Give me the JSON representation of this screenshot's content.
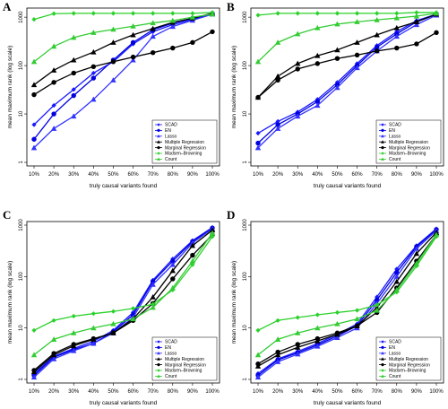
{
  "chart_data": [
    {
      "panel": "A",
      "type": "line",
      "ylog": true,
      "ylim": [
        1,
        1300
      ],
      "yticks": [
        "1",
        "10",
        "100",
        "1000"
      ],
      "xlabel": "truly causal variants found",
      "ylabel": "mean maximum rank (log scale)",
      "categories": [
        "10%",
        "20%",
        "30%",
        "40%",
        "50%",
        "60%",
        "70%",
        "80%",
        "90%",
        "100%"
      ],
      "legend_position": "bottom-right",
      "series": [
        {
          "name": "SCAD",
          "color": "#1a1aff",
          "marker": "diamond",
          "values": [
            6,
            15,
            32,
            70,
            120,
            280,
            500,
            700,
            900,
            1200
          ]
        },
        {
          "name": "EN",
          "color": "#0000e0",
          "marker": "circle",
          "values": [
            3,
            10,
            24,
            55,
            130,
            300,
            550,
            750,
            950,
            1200
          ]
        },
        {
          "name": "Lasso",
          "color": "#3333ff",
          "marker": "triangle",
          "values": [
            2,
            5,
            9,
            20,
            50,
            130,
            400,
            640,
            860,
            1150
          ]
        },
        {
          "name": "Multiple Regression",
          "color": "#000000",
          "marker": "triangle",
          "values": [
            40,
            80,
            130,
            190,
            300,
            430,
            580,
            780,
            950,
            1200
          ]
        },
        {
          "name": "Marginal Regression",
          "color": "#000000",
          "marker": "circle",
          "values": [
            25,
            45,
            70,
            95,
            120,
            150,
            185,
            230,
            300,
            500
          ]
        },
        {
          "name": "Madsen–Browning",
          "color": "#2bd12b",
          "marker": "diamond",
          "values": [
            900,
            1180,
            1200,
            1200,
            1200,
            1200,
            1200,
            1200,
            1200,
            1250
          ]
        },
        {
          "name": "Count",
          "color": "#33cc33",
          "marker": "triangle",
          "values": [
            120,
            250,
            380,
            480,
            560,
            650,
            760,
            850,
            1000,
            1150
          ]
        }
      ]
    },
    {
      "panel": "B",
      "type": "line",
      "ylog": true,
      "ylim": [
        1,
        1300
      ],
      "yticks": [
        "1",
        "10",
        "100",
        "1000"
      ],
      "xlabel": "truly causal variants found",
      "ylabel": "mean maximum rank (log scale)",
      "categories": [
        "10%",
        "20%",
        "30%",
        "40%",
        "50%",
        "60%",
        "70%",
        "80%",
        "90%",
        "100%"
      ],
      "legend_position": "bottom-right",
      "series": [
        {
          "name": "SCAD",
          "color": "#1a1aff",
          "marker": "diamond",
          "values": [
            4,
            7,
            11,
            20,
            45,
            110,
            260,
            500,
            850,
            1150
          ]
        },
        {
          "name": "EN",
          "color": "#0000e0",
          "marker": "circle",
          "values": [
            2.5,
            6,
            10,
            18,
            40,
            100,
            240,
            450,
            800,
            1150
          ]
        },
        {
          "name": "Lasso",
          "color": "#3333ff",
          "marker": "triangle",
          "values": [
            2,
            5,
            9,
            15,
            35,
            90,
            200,
            400,
            700,
            1100
          ]
        },
        {
          "name": "Multiple Regression",
          "color": "#000000",
          "marker": "triangle",
          "values": [
            22,
            60,
            110,
            160,
            210,
            300,
            430,
            600,
            800,
            1150
          ]
        },
        {
          "name": "Marginal Regression",
          "color": "#000000",
          "marker": "circle",
          "values": [
            22,
            50,
            85,
            110,
            140,
            165,
            200,
            230,
            280,
            480
          ]
        },
        {
          "name": "Madsen–Browning",
          "color": "#2bd12b",
          "marker": "diamond",
          "values": [
            1100,
            1200,
            1200,
            1200,
            1200,
            1200,
            1200,
            1200,
            1250,
            1250
          ]
        },
        {
          "name": "Count",
          "color": "#33cc33",
          "marker": "triangle",
          "values": [
            120,
            300,
            450,
            600,
            720,
            800,
            880,
            960,
            1050,
            1200
          ]
        }
      ]
    },
    {
      "panel": "C",
      "type": "line",
      "ylog": true,
      "ylim": [
        1,
        1000
      ],
      "yticks": [
        "1",
        "10",
        "100",
        "1000"
      ],
      "xlabel": "truly causal variants found",
      "ylabel": "mean maximum rank (log scale)",
      "categories": [
        "10%",
        "20%",
        "30%",
        "40%",
        "50%",
        "60%",
        "70%",
        "80%",
        "90%",
        "100%"
      ],
      "legend_position": "bottom-right",
      "series": [
        {
          "name": "SCAD",
          "color": "#1a1aff",
          "marker": "diamond",
          "values": [
            1.3,
            2.8,
            4,
            5.5,
            9,
            20,
            85,
            220,
            500,
            900
          ]
        },
        {
          "name": "EN",
          "color": "#0000e0",
          "marker": "circle",
          "values": [
            1.2,
            2.7,
            3.8,
            5,
            8.5,
            18,
            80,
            200,
            480,
            880
          ]
        },
        {
          "name": "Lasso",
          "color": "#3333ff",
          "marker": "triangle",
          "values": [
            1.1,
            2.5,
            3.6,
            5,
            8,
            16,
            70,
            170,
            450,
            850
          ]
        },
        {
          "name": "Multiple Regression",
          "color": "#000000",
          "marker": "triangle",
          "values": [
            1.4,
            3,
            4.5,
            6,
            8,
            15,
            40,
            130,
            400,
            800
          ]
        },
        {
          "name": "Marginal Regression",
          "color": "#000000",
          "marker": "circle",
          "values": [
            1.5,
            3.2,
            4.8,
            6.2,
            8,
            14,
            30,
            90,
            260,
            650
          ]
        },
        {
          "name": "Madsen–Browning",
          "color": "#2bd12b",
          "marker": "diamond",
          "values": [
            9,
            14,
            17,
            19,
            21,
            24,
            29,
            55,
            170,
            600
          ]
        },
        {
          "name": "Count",
          "color": "#33cc33",
          "marker": "triangle",
          "values": [
            3,
            6,
            8,
            10,
            12,
            15,
            25,
            60,
            200,
            700
          ]
        }
      ]
    },
    {
      "panel": "D",
      "type": "line",
      "ylog": true,
      "ylim": [
        1,
        1000
      ],
      "yticks": [
        "1",
        "10",
        "100",
        "1000"
      ],
      "xlabel": "truly causal variants found",
      "ylabel": "mean maximum rank (log scale)",
      "categories": [
        "10%",
        "20%",
        "30%",
        "40%",
        "50%",
        "60%",
        "70%",
        "80%",
        "90%",
        "100%"
      ],
      "legend_position": "bottom-right",
      "series": [
        {
          "name": "SCAD",
          "color": "#1a1aff",
          "marker": "diamond",
          "values": [
            1.3,
            2.5,
            3.5,
            5,
            7.5,
            12,
            40,
            140,
            400,
            850
          ]
        },
        {
          "name": "EN",
          "color": "#0000e0",
          "marker": "circle",
          "values": [
            1.2,
            2.4,
            3.3,
            4.7,
            7,
            11,
            35,
            120,
            380,
            820
          ]
        },
        {
          "name": "Lasso",
          "color": "#3333ff",
          "marker": "triangle",
          "values": [
            1.1,
            2.2,
            3.1,
            4.4,
            6.5,
            10,
            30,
            100,
            350,
            780
          ]
        },
        {
          "name": "Multiple Regression",
          "color": "#000000",
          "marker": "triangle",
          "values": [
            1.8,
            3,
            4.2,
            5.6,
            7.5,
            11,
            25,
            80,
            280,
            720
          ]
        },
        {
          "name": "Marginal Regression",
          "color": "#000000",
          "marker": "circle",
          "values": [
            2,
            3.4,
            4.8,
            6.2,
            8,
            11,
            20,
            60,
            200,
            650
          ]
        },
        {
          "name": "Madsen–Browning",
          "color": "#2bd12b",
          "marker": "diamond",
          "values": [
            9,
            14,
            16,
            18,
            20,
            22,
            28,
            50,
            160,
            600
          ]
        },
        {
          "name": "Count",
          "color": "#33cc33",
          "marker": "triangle",
          "values": [
            3,
            6,
            8,
            10,
            12,
            15,
            22,
            55,
            180,
            650
          ]
        }
      ]
    }
  ]
}
